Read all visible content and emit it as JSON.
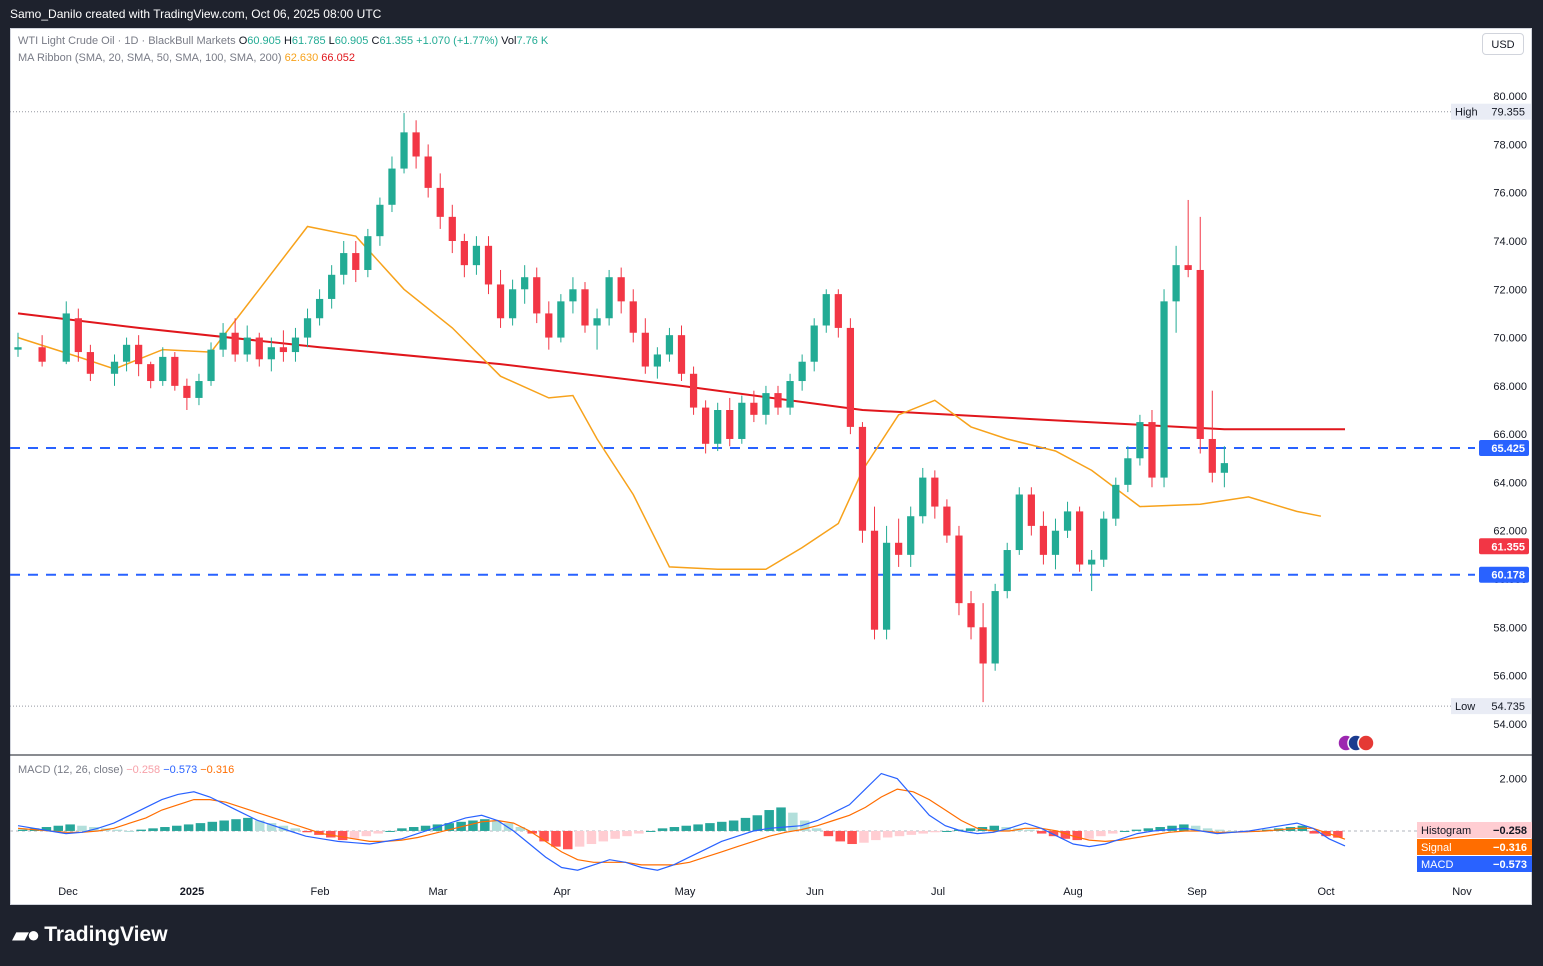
{
  "header": {
    "attribution": "Samo_Danilo created with TradingView.com, Oct 06, 2025 08:00 UTC"
  },
  "legend": {
    "symbol": "WTI Light Crude Oil · 1D · BlackBull Markets",
    "o_label": "O",
    "o_value": "60.905",
    "h_label": "H",
    "h_value": "61.785",
    "l_label": "L",
    "l_value": "60.905",
    "c_label": "C",
    "c_value": "61.355",
    "change": "+1.070 (+1.77%)",
    "vol_label": "Vol",
    "vol_value": "7.76 K",
    "ma_label": "MA Ribbon (SMA, 20, SMA, 50, SMA, 100, SMA, 200)",
    "ma20_value": "62.630",
    "ma200_value": "66.052",
    "macd_label": "MACD (12, 26, close)",
    "macd_hist": "−0.258",
    "macd_line": "−0.573",
    "macd_signal": "−0.316"
  },
  "currency_button": "USD",
  "brand": "TradingView",
  "colors": {
    "up": "#22ab94",
    "down": "#f23645",
    "ma20": "#f7a21b",
    "ma200": "#e0161c",
    "levels": "#2962ff",
    "macd": "#2962ff",
    "signal": "#ff6d00"
  },
  "chart_data": {
    "type": "candlestick",
    "ylim": [
      53,
      81
    ],
    "y_ticks": [
      "80.000",
      "78.000",
      "76.000",
      "74.000",
      "72.000",
      "70.000",
      "68.000",
      "66.000",
      "64.000",
      "62.000",
      "60.000",
      "58.000",
      "56.000",
      "54.000"
    ],
    "x_labels": [
      "Dec",
      "2025",
      "Feb",
      "Mar",
      "Apr",
      "May",
      "Jun",
      "Jul",
      "Aug",
      "Sep",
      "Oct",
      "Nov"
    ],
    "high_label": "High",
    "high_value": "79.355",
    "low_label": "Low",
    "low_value": "54.735",
    "levels": [
      {
        "value": 65.425,
        "label": "65.425"
      },
      {
        "value": 60.178,
        "label": "60.178"
      }
    ],
    "last_price": {
      "value": 61.355,
      "label": "61.355"
    },
    "ma200_path": [
      [
        0,
        71.0
      ],
      [
        10,
        70.4
      ],
      [
        25,
        69.6
      ],
      [
        40,
        68.9
      ],
      [
        55,
        68.0
      ],
      [
        70,
        67.0
      ],
      [
        85,
        66.6
      ],
      [
        100,
        66.2
      ],
      [
        110,
        66.2
      ]
    ],
    "ma20_path": [
      [
        0,
        70.0
      ],
      [
        5,
        69.2
      ],
      [
        8,
        68.7
      ],
      [
        12,
        69.5
      ],
      [
        16,
        69.4
      ],
      [
        20,
        72.0
      ],
      [
        24,
        74.6
      ],
      [
        28,
        74.2
      ],
      [
        32,
        72.0
      ],
      [
        36,
        70.4
      ],
      [
        40,
        68.4
      ],
      [
        44,
        67.5
      ],
      [
        46,
        67.6
      ],
      [
        48,
        65.8
      ],
      [
        51,
        63.5
      ],
      [
        54,
        60.5
      ],
      [
        58,
        60.4
      ],
      [
        62,
        60.4
      ],
      [
        65,
        61.3
      ],
      [
        68,
        62.3
      ],
      [
        70,
        64.5
      ],
      [
        73,
        66.8
      ],
      [
        76,
        67.4
      ],
      [
        79,
        66.3
      ],
      [
        82,
        65.8
      ],
      [
        86,
        65.3
      ],
      [
        89,
        64.5
      ],
      [
        93,
        63.0
      ],
      [
        98,
        63.1
      ],
      [
        102,
        63.4
      ],
      [
        106,
        62.8
      ],
      [
        108,
        62.6
      ]
    ],
    "candles": [
      [
        0,
        69.5,
        70.2,
        69.2,
        69.6
      ],
      [
        2,
        69.6,
        70.1,
        68.8,
        69.0
      ],
      [
        4,
        69.0,
        71.5,
        68.9,
        71.0
      ],
      [
        5,
        70.8,
        71.2,
        69.0,
        69.4
      ],
      [
        6,
        69.4,
        69.7,
        68.2,
        68.5
      ],
      [
        8,
        68.5,
        69.3,
        68.0,
        69.0
      ],
      [
        9,
        69.0,
        70.0,
        68.6,
        69.7
      ],
      [
        10,
        69.7,
        70.1,
        68.4,
        68.9
      ],
      [
        11,
        68.9,
        69.0,
        67.9,
        68.2
      ],
      [
        12,
        68.2,
        69.6,
        68.0,
        69.2
      ],
      [
        13,
        69.2,
        69.4,
        67.8,
        68.0
      ],
      [
        14,
        68.0,
        68.3,
        67.0,
        67.5
      ],
      [
        15,
        67.5,
        68.5,
        67.2,
        68.2
      ],
      [
        16,
        68.2,
        69.8,
        68.0,
        69.5
      ],
      [
        17,
        69.5,
        70.6,
        69.2,
        70.2
      ],
      [
        18,
        70.2,
        70.8,
        69.0,
        69.3
      ],
      [
        19,
        69.3,
        70.5,
        69.0,
        70.0
      ],
      [
        20,
        70.0,
        70.2,
        68.8,
        69.1
      ],
      [
        21,
        69.1,
        70.0,
        68.6,
        69.6
      ],
      [
        22,
        69.6,
        70.3,
        69.0,
        69.4
      ],
      [
        23,
        69.4,
        70.4,
        69.0,
        70.0
      ],
      [
        24,
        70.0,
        71.2,
        69.6,
        70.8
      ],
      [
        25,
        70.8,
        72.0,
        70.5,
        71.6
      ],
      [
        26,
        71.6,
        73.0,
        71.2,
        72.6
      ],
      [
        27,
        72.6,
        74.0,
        72.2,
        73.5
      ],
      [
        28,
        73.5,
        74.0,
        72.3,
        72.8
      ],
      [
        29,
        72.8,
        74.5,
        72.5,
        74.2
      ],
      [
        30,
        74.2,
        75.8,
        73.8,
        75.5
      ],
      [
        31,
        75.5,
        77.5,
        75.2,
        77.0
      ],
      [
        32,
        77.0,
        79.3,
        76.8,
        78.5
      ],
      [
        33,
        78.5,
        79.0,
        77.0,
        77.5
      ],
      [
        34,
        77.5,
        78.0,
        75.8,
        76.2
      ],
      [
        35,
        76.2,
        76.8,
        74.5,
        75.0
      ],
      [
        36,
        75.0,
        75.5,
        73.5,
        74.0
      ],
      [
        37,
        74.0,
        74.3,
        72.5,
        73.0
      ],
      [
        38,
        73.0,
        74.2,
        72.6,
        73.8
      ],
      [
        39,
        73.8,
        74.2,
        71.8,
        72.2
      ],
      [
        40,
        72.2,
        72.8,
        70.4,
        70.8
      ],
      [
        41,
        70.8,
        72.4,
        70.5,
        72.0
      ],
      [
        42,
        72.0,
        73.0,
        71.4,
        72.5
      ],
      [
        43,
        72.5,
        72.9,
        70.6,
        71.0
      ],
      [
        44,
        71.0,
        71.5,
        69.5,
        70.0
      ],
      [
        45,
        70.0,
        71.8,
        69.8,
        71.5
      ],
      [
        46,
        71.5,
        72.5,
        71.0,
        72.0
      ],
      [
        47,
        72.0,
        72.3,
        70.2,
        70.5
      ],
      [
        48,
        70.5,
        71.2,
        69.5,
        70.8
      ],
      [
        49,
        70.8,
        72.8,
        70.5,
        72.5
      ],
      [
        50,
        72.5,
        72.9,
        71.0,
        71.5
      ],
      [
        51,
        71.5,
        72.0,
        69.8,
        70.2
      ],
      [
        52,
        70.2,
        70.8,
        68.5,
        68.8
      ],
      [
        53,
        68.8,
        69.6,
        68.3,
        69.3
      ],
      [
        54,
        69.3,
        70.4,
        69.0,
        70.1
      ],
      [
        55,
        70.1,
        70.5,
        68.2,
        68.5
      ],
      [
        56,
        68.5,
        68.8,
        66.8,
        67.1
      ],
      [
        57,
        67.1,
        67.4,
        65.2,
        65.6
      ],
      [
        58,
        65.6,
        67.3,
        65.3,
        67.0
      ],
      [
        59,
        67.0,
        67.5,
        65.5,
        65.8
      ],
      [
        60,
        65.8,
        67.6,
        65.6,
        67.3
      ],
      [
        61,
        67.3,
        67.8,
        66.5,
        66.8
      ],
      [
        62,
        66.8,
        68.0,
        66.4,
        67.7
      ],
      [
        63,
        67.7,
        68.0,
        66.8,
        67.1
      ],
      [
        64,
        67.1,
        68.5,
        66.8,
        68.2
      ],
      [
        65,
        68.2,
        69.3,
        67.8,
        69.0
      ],
      [
        66,
        69.0,
        70.8,
        68.6,
        70.5
      ],
      [
        67,
        70.5,
        72.0,
        70.2,
        71.8
      ],
      [
        68,
        71.8,
        72.0,
        70.0,
        70.4
      ],
      [
        69,
        70.4,
        70.8,
        66.0,
        66.3
      ],
      [
        70,
        66.3,
        66.5,
        61.5,
        62.0
      ],
      [
        71,
        62.0,
        63.0,
        57.5,
        57.9
      ],
      [
        72,
        57.9,
        62.2,
        57.5,
        61.5
      ],
      [
        73,
        61.5,
        62.5,
        60.5,
        61.0
      ],
      [
        74,
        61.0,
        63.0,
        60.5,
        62.6
      ],
      [
        75,
        62.6,
        64.6,
        62.3,
        64.2
      ],
      [
        76,
        64.2,
        64.5,
        62.5,
        63.0
      ],
      [
        77,
        63.0,
        63.3,
        61.5,
        61.8
      ],
      [
        78,
        61.8,
        62.2,
        58.5,
        59.0
      ],
      [
        79,
        59.0,
        59.5,
        57.5,
        58.0
      ],
      [
        80,
        58.0,
        59.0,
        54.9,
        56.5
      ],
      [
        81,
        56.5,
        59.8,
        56.2,
        59.5
      ],
      [
        82,
        59.5,
        61.5,
        59.2,
        61.2
      ],
      [
        83,
        61.2,
        63.8,
        61.0,
        63.5
      ],
      [
        84,
        63.5,
        63.8,
        61.8,
        62.2
      ],
      [
        85,
        62.2,
        62.8,
        60.6,
        61.0
      ],
      [
        86,
        61.0,
        62.5,
        60.4,
        62.0
      ],
      [
        87,
        62.0,
        63.2,
        61.7,
        62.8
      ],
      [
        88,
        62.8,
        63.0,
        60.3,
        60.6
      ],
      [
        89,
        60.6,
        61.2,
        59.5,
        60.8
      ],
      [
        90,
        60.8,
        62.8,
        60.5,
        62.5
      ],
      [
        91,
        62.5,
        64.2,
        62.2,
        63.9
      ],
      [
        92,
        63.9,
        65.5,
        63.6,
        65.0
      ],
      [
        93,
        65.0,
        66.8,
        64.7,
        66.5
      ],
      [
        94,
        66.5,
        67.0,
        63.8,
        64.2
      ],
      [
        95,
        64.2,
        72.0,
        63.8,
        71.5
      ],
      [
        96,
        71.5,
        73.8,
        70.2,
        73.0
      ],
      [
        97,
        73.0,
        75.7,
        72.5,
        72.8
      ],
      [
        98,
        72.8,
        75.0,
        65.2,
        65.8
      ],
      [
        99,
        65.8,
        67.8,
        64.0,
        64.4
      ],
      [
        100,
        64.4,
        65.5,
        63.8,
        64.8
      ]
    ],
    "macd": {
      "label": "MACD",
      "signal_label": "Signal",
      "histogram_label": "Histogram",
      "ylim": [
        -1.8,
        2.6
      ],
      "tick": "2.000",
      "histogram": [
        0.05,
        0.1,
        0.15,
        0.2,
        0.25,
        0.2,
        0.15,
        0.1,
        0.05,
        0.0,
        0.05,
        0.1,
        0.15,
        0.2,
        0.25,
        0.3,
        0.35,
        0.4,
        0.45,
        0.5,
        0.4,
        0.3,
        0.2,
        0.1,
        -0.05,
        -0.15,
        -0.25,
        -0.35,
        -0.3,
        -0.2,
        -0.1,
        0.0,
        0.1,
        0.15,
        0.2,
        0.25,
        0.3,
        0.35,
        0.4,
        0.45,
        0.4,
        0.3,
        0.15,
        -0.1,
        -0.4,
        -0.6,
        -0.7,
        -0.6,
        -0.5,
        -0.4,
        -0.3,
        -0.2,
        -0.1,
        0.0,
        0.1,
        0.15,
        0.2,
        0.25,
        0.3,
        0.35,
        0.4,
        0.5,
        0.6,
        0.8,
        0.9,
        0.7,
        0.4,
        0.1,
        -0.2,
        -0.4,
        -0.5,
        -0.45,
        -0.35,
        -0.25,
        -0.2,
        -0.15,
        -0.1,
        -0.05,
        0.0,
        0.05,
        0.1,
        0.15,
        0.2,
        0.15,
        0.1,
        0.05,
        -0.1,
        -0.2,
        -0.3,
        -0.35,
        -0.3,
        -0.2,
        -0.1,
        0.0,
        0.05,
        0.1,
        0.15,
        0.2,
        0.25,
        0.2,
        0.1,
        0.05,
        0.0,
        -0.05,
        0.0,
        0.05,
        0.1,
        0.15,
        0.2,
        -0.1,
        -0.2,
        -0.258
      ],
      "macd_line": [
        0.2,
        0.1,
        0.0,
        -0.1,
        -0.05,
        0.1,
        0.3,
        0.6,
        0.9,
        1.2,
        1.4,
        1.5,
        1.3,
        1.0,
        0.7,
        0.4,
        0.2,
        0.0,
        -0.2,
        -0.3,
        -0.4,
        -0.45,
        -0.5,
        -0.4,
        -0.3,
        -0.1,
        0.1,
        0.3,
        0.5,
        0.6,
        0.4,
        0.0,
        -0.5,
        -1.0,
        -1.4,
        -1.5,
        -1.3,
        -1.1,
        -1.2,
        -1.4,
        -1.5,
        -1.3,
        -1.0,
        -0.7,
        -0.4,
        -0.2,
        0.0,
        0.1,
        0.15,
        0.2,
        0.4,
        0.7,
        1.0,
        1.6,
        2.2,
        2.0,
        1.3,
        0.6,
        0.2,
        0.0,
        -0.1,
        -0.05,
        0.1,
        0.3,
        0.1,
        -0.2,
        -0.5,
        -0.6,
        -0.5,
        -0.3,
        -0.1,
        0.0,
        0.05,
        0.1,
        0.0,
        -0.1,
        -0.05,
        0.0,
        0.1,
        0.2,
        0.3,
        0.1,
        -0.3,
        -0.573
      ],
      "signal_line": [
        0.1,
        0.05,
        0.0,
        -0.05,
        -0.05,
        0.0,
        0.1,
        0.3,
        0.5,
        0.8,
        1.0,
        1.2,
        1.2,
        1.1,
        0.9,
        0.7,
        0.5,
        0.3,
        0.1,
        -0.1,
        -0.2,
        -0.3,
        -0.4,
        -0.4,
        -0.35,
        -0.25,
        -0.1,
        0.05,
        0.2,
        0.35,
        0.4,
        0.3,
        0.0,
        -0.4,
        -0.8,
        -1.1,
        -1.2,
        -1.2,
        -1.2,
        -1.3,
        -1.3,
        -1.3,
        -1.2,
        -1.0,
        -0.8,
        -0.6,
        -0.4,
        -0.2,
        -0.05,
        0.05,
        0.2,
        0.4,
        0.6,
        0.9,
        1.3,
        1.6,
        1.5,
        1.2,
        0.8,
        0.4,
        0.1,
        0.0,
        0.0,
        0.1,
        0.1,
        0.0,
        -0.2,
        -0.35,
        -0.4,
        -0.35,
        -0.25,
        -0.15,
        -0.05,
        0.0,
        0.0,
        -0.05,
        -0.05,
        -0.03,
        0.0,
        0.05,
        0.1,
        0.1,
        -0.1,
        -0.316
      ]
    }
  }
}
